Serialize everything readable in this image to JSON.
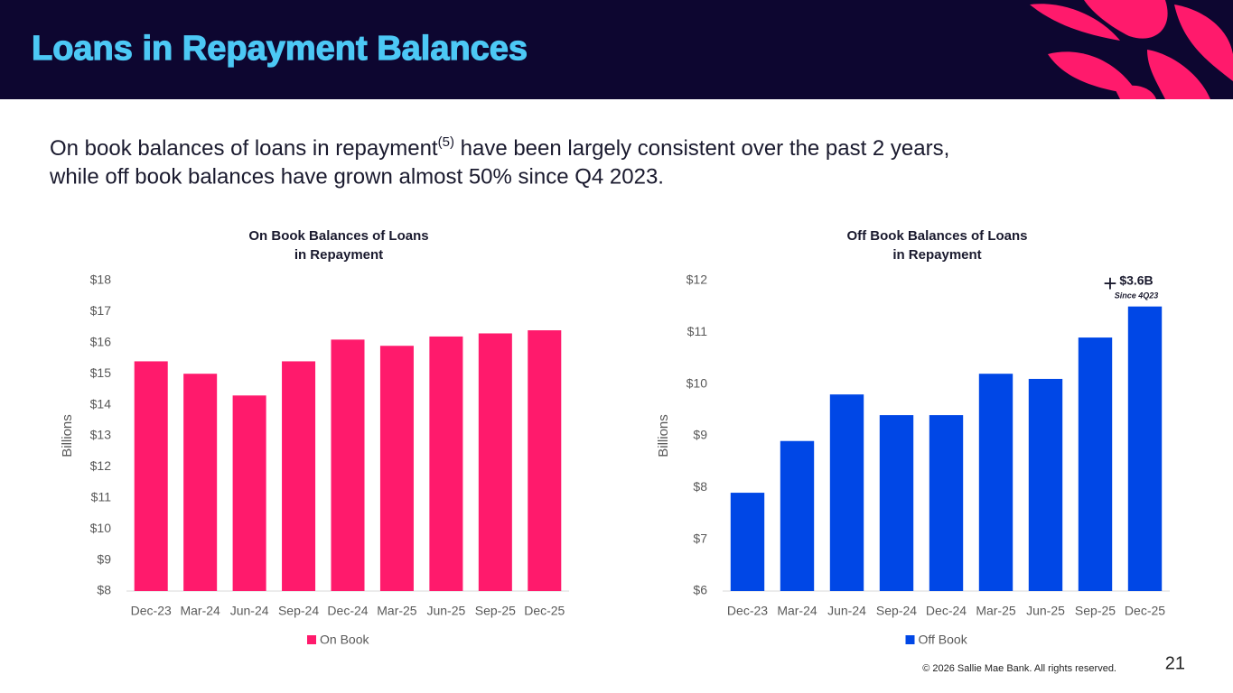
{
  "header": {
    "title": "Loans in Repayment Balances"
  },
  "summary": {
    "line1": [
      "On book balances of loans in repayment",
      "(5)",
      " have been largely consistent over the past 2 years,"
    ],
    "line2": "while off book balances have grown almost 50% since Q4 2023."
  },
  "footer": "© 2026 Sallie Mae Bank. All rights reserved.",
  "page_number": "21",
  "chart_data": [
    {
      "type": "bar",
      "title": [
        "On Book Balances of Loans",
        "in Repayment"
      ],
      "y_label": "Billions",
      "categories": [
        "Dec-23",
        "Mar-24",
        "Jun-24",
        "Sep-24",
        "Dec-24",
        "Mar-25",
        "Jun-25",
        "Sep-25",
        "Dec-25"
      ],
      "series": [
        {
          "name": "On Book",
          "color": "#ff1a6c",
          "values": [
            15.4,
            15.0,
            14.3,
            15.4,
            16.1,
            15.9,
            16.2,
            16.3,
            16.4
          ]
        }
      ],
      "ylim": [
        8,
        18
      ],
      "yticks": [
        {
          "value": 8,
          "label": "$8"
        },
        {
          "value": 9,
          "label": "$9"
        },
        {
          "value": 10,
          "label": "$10"
        },
        {
          "value": 11,
          "label": "$11"
        },
        {
          "value": 12,
          "label": "$12"
        },
        {
          "value": 13,
          "label": "$13"
        },
        {
          "value": 14,
          "label": "$14"
        },
        {
          "value": 15,
          "label": "$15"
        },
        {
          "value": 16,
          "label": "$16"
        },
        {
          "value": 17,
          "label": "$17"
        },
        {
          "value": 18,
          "label": "$18"
        }
      ],
      "legend": "bottom"
    },
    {
      "type": "bar",
      "title": [
        "Off Book Balances of Loans",
        "in Repayment"
      ],
      "y_label": "Billions",
      "categories": [
        "Dec-23",
        "Mar-24",
        "Jun-24",
        "Sep-24",
        "Dec-24",
        "Mar-25",
        "Jun-25",
        "Sep-25",
        "Dec-25"
      ],
      "series": [
        {
          "name": "Off Book",
          "color": "#0047e6",
          "values": [
            7.9,
            8.9,
            9.8,
            9.4,
            9.4,
            10.2,
            10.1,
            10.9,
            11.5
          ]
        }
      ],
      "ylim": [
        6,
        12
      ],
      "yticks": [
        {
          "value": 6,
          "label": "$6"
        },
        {
          "value": 7,
          "label": "$7"
        },
        {
          "value": 8,
          "label": "$8"
        },
        {
          "value": 9,
          "label": "$9"
        },
        {
          "value": 10,
          "label": "$10"
        },
        {
          "value": 11,
          "label": "$11"
        },
        {
          "value": 12,
          "label": "$12"
        }
      ],
      "annotations": [
        "+",
        "$3.6B",
        "Since 4Q23"
      ],
      "legend": "bottom"
    }
  ]
}
